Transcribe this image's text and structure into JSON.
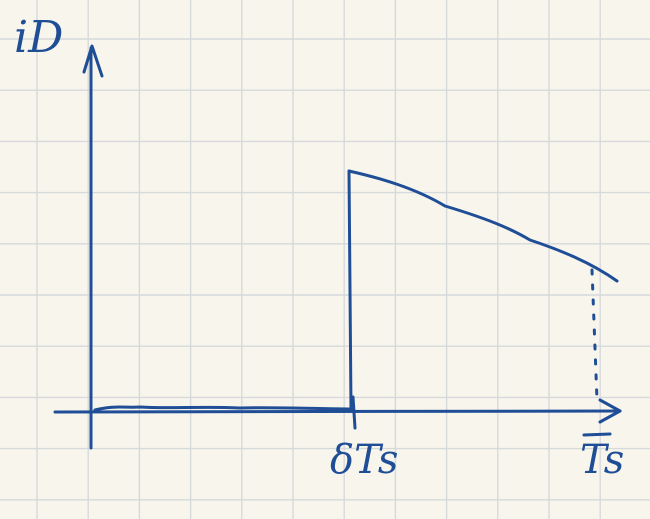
{
  "labels": {
    "y_axis": "iD",
    "x_tick_delta_ts": "δTs",
    "x_tick_ts": "Ts"
  },
  "colors": {
    "ink": "#1f4e97",
    "grid": "#d6d9dc",
    "paper": "#f8f6ec"
  }
}
